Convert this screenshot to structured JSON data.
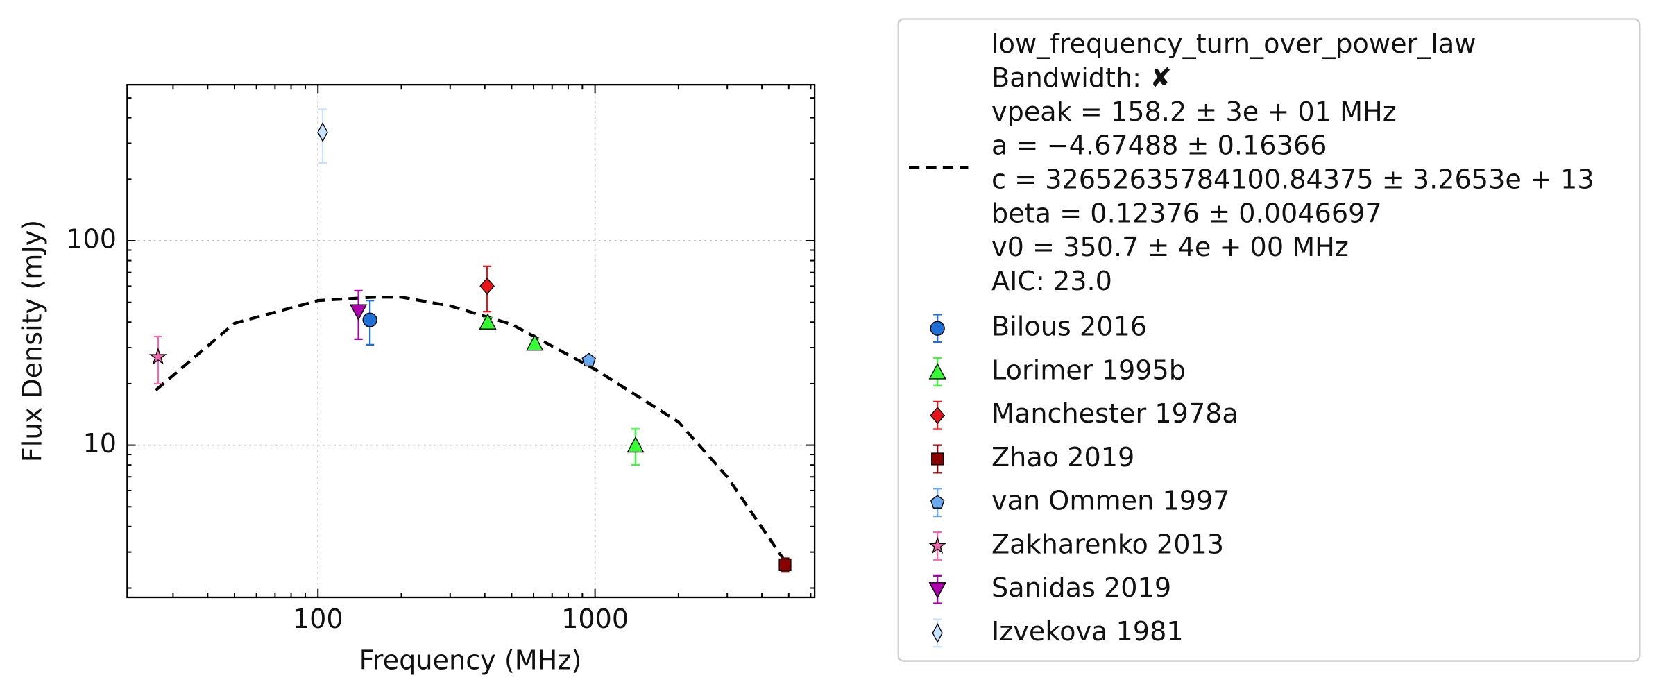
{
  "chart_data": {
    "type": "scatter",
    "xlabel": "Frequency (MHz)",
    "ylabel": "Flux Density (mJy)",
    "xscale": "log",
    "yscale": "log",
    "grid": true,
    "xlim": [
      20.5,
      6200
    ],
    "ylim": [
      1.8,
      580
    ],
    "xticks": [
      100,
      1000
    ],
    "yticks": [
      10,
      100
    ],
    "xminorticks": [
      30,
      40,
      50,
      60,
      70,
      80,
      90,
      200,
      300,
      400,
      500,
      600,
      700,
      800,
      900,
      2000,
      3000,
      4000,
      5000,
      6000
    ],
    "yminorticks": [
      2,
      3,
      4,
      5,
      6,
      7,
      8,
      9,
      20,
      30,
      40,
      50,
      60,
      70,
      80,
      90,
      200,
      300,
      400,
      500
    ],
    "fit": {
      "name": "low_frequency_turn_over_power_law",
      "color": "#000000",
      "details": [
        "Bandwidth: ✘",
        "vpeak = 158.2 ± 3e + 01 MHz",
        "a = −4.67488 ± 0.16366",
        "c = 32652635784100.84375 ± 3.2653e + 13",
        "beta = 0.12376 ± 0.0046697",
        "v0 = 350.7 ± 4e + 00 MHz",
        "AIC: 23.0"
      ],
      "x": [
        26,
        50,
        100,
        160,
        200,
        300,
        500,
        1000,
        2000,
        3000,
        4850
      ],
      "values": [
        18.6,
        39.5,
        51,
        53,
        53,
        48,
        39,
        23.5,
        13,
        7,
        2.7
      ]
    },
    "legend": "upper right",
    "series": [
      {
        "name": "Bilous 2016",
        "color": "#1f6fd6",
        "marker": "circle",
        "x": [
          154
        ],
        "values": [
          41
        ],
        "errors": [
          10
        ]
      },
      {
        "name": "Lorimer 1995b",
        "color": "#33ff33",
        "marker": "triangle-up",
        "x": [
          410,
          606,
          1400
        ],
        "values": [
          40,
          31.5,
          10
        ],
        "errors": [
          2,
          1.5,
          2
        ]
      },
      {
        "name": "Manchester 1978a",
        "color": "#e8141a",
        "marker": "diamond",
        "x": [
          408
        ],
        "values": [
          60
        ],
        "errors": [
          15
        ]
      },
      {
        "name": "Zhao 2019",
        "color": "#8b0000",
        "marker": "square",
        "x": [
          4850
        ],
        "values": [
          2.6
        ],
        "errors": [
          0.2
        ]
      },
      {
        "name": "van Ommen 1997",
        "color": "#6aaaf0",
        "marker": "pentagon",
        "x": [
          950
        ],
        "values": [
          26
        ],
        "errors": [
          1
        ]
      },
      {
        "name": "Zakharenko 2013",
        "color": "#f06ab0",
        "marker": "star",
        "x": [
          26.5
        ],
        "values": [
          27
        ],
        "errors": [
          7
        ]
      },
      {
        "name": "Sanidas 2019",
        "color": "#b000b0",
        "marker": "triangle-down",
        "x": [
          140
        ],
        "values": [
          45
        ],
        "errors": [
          12
        ]
      },
      {
        "name": "Izvekova 1981",
        "color": "#c6e2ff",
        "marker": "thin-diamond",
        "x": [
          104
        ],
        "values": [
          340
        ],
        "errors": [
          100
        ]
      }
    ]
  }
}
